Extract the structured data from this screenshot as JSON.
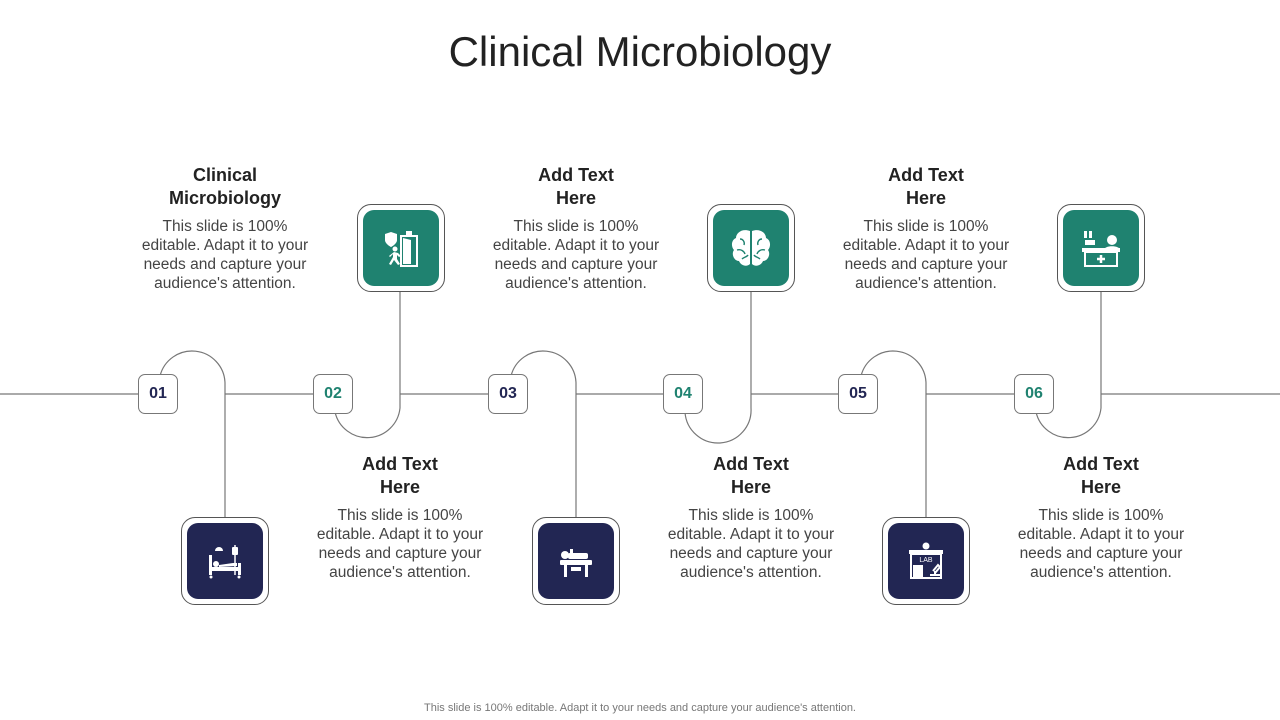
{
  "title": "Clinical Microbiology",
  "colors": {
    "green": "#1f8270",
    "navy": "#222653",
    "line": "#777777"
  },
  "steps": [
    {
      "number": "01",
      "heading": "Clinical Microbiology",
      "body": "This slide is 100% editable. Adapt it to your needs and capture your audience's attention.",
      "icon": "hospital-bed-icon",
      "number_color": "#222653"
    },
    {
      "number": "02",
      "heading": "Add Text Here",
      "body": "This slide is 100% editable. Adapt it to your needs and capture your audience's attention.",
      "icon": "emergency-exit-icon",
      "number_color": "#1f8270"
    },
    {
      "number": "03",
      "heading": "Add Text Here",
      "body": "This slide is 100% editable. Adapt it to your needs and capture your audience's attention.",
      "icon": "patient-table-icon",
      "number_color": "#222653"
    },
    {
      "number": "04",
      "heading": "Add Text Here",
      "body": "This slide is 100% editable. Adapt it to your needs and capture your audience's attention.",
      "icon": "brain-icon",
      "number_color": "#1f8270"
    },
    {
      "number": "05",
      "heading": "Add Text Here",
      "body": "This slide is 100% editable. Adapt it to your needs and capture your audience's attention.",
      "icon": "lab-icon",
      "number_color": "#222653"
    },
    {
      "number": "06",
      "heading": "Add Text Here",
      "body": "This slide is 100% editable. Adapt it to your needs and capture your audience's attention.",
      "icon": "reception-desk-icon",
      "number_color": "#1f8270"
    }
  ],
  "lab_icon_text": "LAB",
  "footer": "This slide is 100% editable. Adapt it to your needs and capture your audience's attention."
}
